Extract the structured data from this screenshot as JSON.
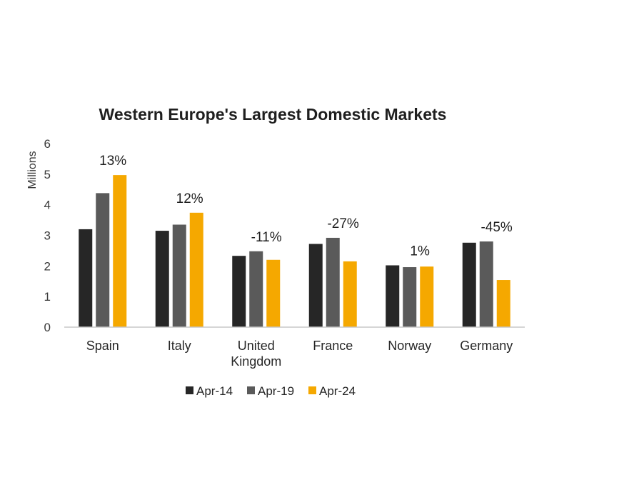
{
  "chart_data": {
    "type": "bar",
    "title": "Western Europe's Largest Domestic Markets",
    "xlabel": "",
    "ylabel": "Millions",
    "ylim": [
      0,
      6
    ],
    "yticks": [
      "0",
      "1",
      "2",
      "3",
      "4",
      "5",
      "6"
    ],
    "categories": [
      [
        "Spain"
      ],
      [
        "Italy"
      ],
      [
        "United",
        "Kingdom"
      ],
      [
        "France"
      ],
      [
        "Norway"
      ],
      [
        "Germany"
      ]
    ],
    "series": [
      {
        "name": "Apr-14",
        "color": "#262626",
        "values": [
          3.2,
          3.15,
          2.33,
          2.72,
          2.02,
          2.76
        ]
      },
      {
        "name": "Apr-19",
        "color": "#5a5a5a",
        "values": [
          4.38,
          3.35,
          2.48,
          2.92,
          1.96,
          2.8
        ]
      },
      {
        "name": "Apr-24",
        "color": "#f5a800",
        "values": [
          4.97,
          3.74,
          2.2,
          2.15,
          1.98,
          1.54
        ]
      }
    ],
    "change_labels": [
      "13%",
      "12%",
      "-11%",
      "-27%",
      "1%",
      "-45%"
    ],
    "legend_position": "bottom",
    "grid": false
  }
}
